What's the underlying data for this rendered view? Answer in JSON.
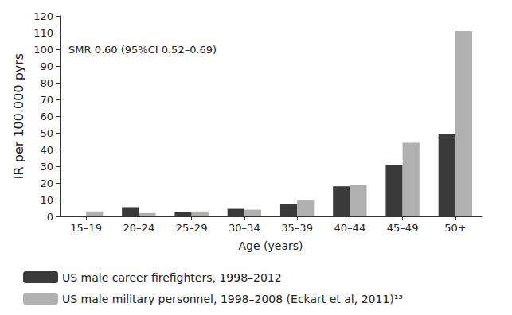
{
  "chart_data": {
    "type": "bar",
    "xlabel": "Age (years)",
    "ylabel": "IR per 100.000 pyrs",
    "annotation": "SMR 0.60 (95%CI 0.52–0.69)",
    "categories": [
      "15–19",
      "20–24",
      "25–29",
      "30–34",
      "35–39",
      "40–44",
      "45–49",
      "50+"
    ],
    "series": [
      {
        "name": "US male career firefighters, 1998–2012",
        "color": "#3a3a3a",
        "values": [
          null,
          5.5,
          2.5,
          4.5,
          7.5,
          18,
          31,
          49
        ]
      },
      {
        "name": "US male military personnel, 1998–2008 (Eckart et al, 2011)¹³",
        "color": "#b0b0b0",
        "values": [
          3,
          2,
          3,
          4,
          9.5,
          19,
          44,
          111
        ]
      }
    ],
    "ylim": [
      0,
      120
    ],
    "yticks": [
      0,
      10,
      20,
      30,
      40,
      50,
      60,
      70,
      80,
      90,
      100,
      110,
      120
    ],
    "grid": false,
    "legend": "bottom-left"
  }
}
